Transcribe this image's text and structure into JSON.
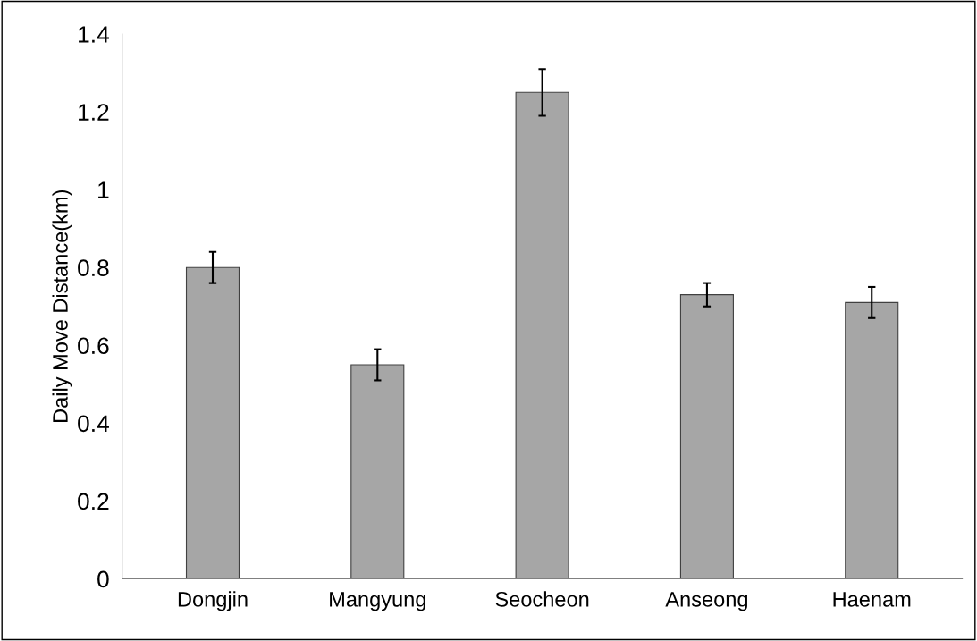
{
  "chart_data": {
    "type": "bar",
    "ylabel": "Daily Move Distance(km)",
    "categories": [
      "Dongjin",
      "Mangyung",
      "Seocheon",
      "Anseong",
      "Haenam"
    ],
    "values": [
      0.8,
      0.55,
      1.25,
      0.73,
      0.71
    ],
    "errors": [
      0.04,
      0.04,
      0.06,
      0.03,
      0.04
    ],
    "color": "#a6a6a6",
    "ylim": [
      0,
      1.4
    ],
    "yticks": [
      {
        "value": 0,
        "label": "0"
      },
      0.2,
      0.4,
      0.6,
      0.8,
      {
        "value": 1,
        "label": "1"
      },
      1.2,
      1.4
    ],
    "grid": false,
    "legend": false
  }
}
